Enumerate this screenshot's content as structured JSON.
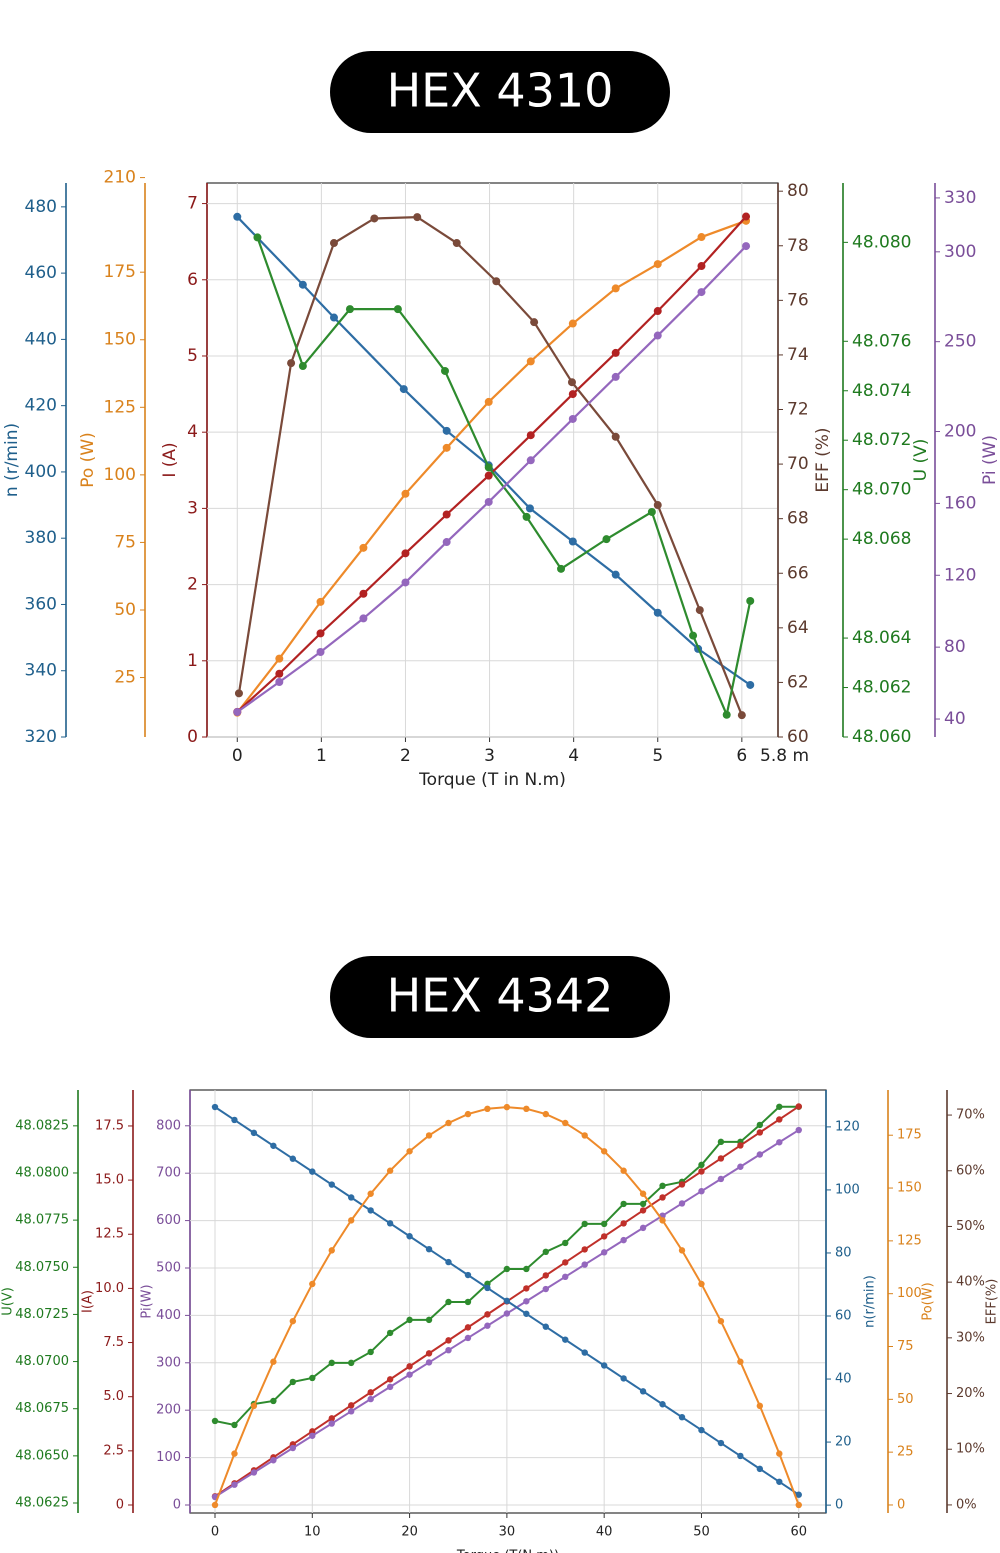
{
  "chart_data": [
    {
      "type": "line",
      "title": "HEX 4310",
      "xlabel": "Torque (T in N.m)",
      "x_annotation": "5.8 m",
      "xlim": [
        -0.36,
        6.43
      ],
      "xticks": [
        0,
        1,
        2,
        3,
        4,
        5,
        6
      ],
      "grid": true,
      "axes": [
        {
          "label": "n (r/min)",
          "color": "#1f5f8b",
          "series_color": "#2e6da4",
          "ylim": [
            320,
            487.2
          ],
          "yticks": [
            320,
            340,
            360,
            380,
            400,
            420,
            440,
            460,
            480
          ],
          "x": [
            0,
            0.78,
            1.15,
            1.98,
            2.49,
            2.99,
            3.48,
            3.99,
            4.5,
            5,
            5.48,
            6.1
          ],
          "values": [
            477,
            456.5,
            446.6,
            425,
            412.4,
            402,
            389,
            379,
            369,
            357.5,
            346.6,
            335.7
          ]
        },
        {
          "label": "Po (W)",
          "color": "#d9821c",
          "series_color": "#ee8a2a",
          "ylim": [
            3,
            208
          ],
          "yticks": [
            25,
            50,
            75,
            100,
            125,
            150,
            175,
            210
          ],
          "x": [
            0,
            0.5,
            0.99,
            1.5,
            2,
            2.49,
            2.99,
            3.49,
            3.99,
            4.5,
            5,
            5.52,
            6.05
          ],
          "values": [
            12,
            32,
            53,
            73,
            93,
            110,
            127,
            142,
            156,
            169,
            178,
            188,
            194
          ]
        },
        {
          "label": "I (A)",
          "color": "#8b1a1a",
          "series_color": "#b22222",
          "ylim": [
            0,
            7.27
          ],
          "yticks": [
            0,
            1,
            2,
            3,
            4,
            5,
            6,
            7
          ],
          "x": [
            0,
            0.5,
            0.99,
            1.5,
            2,
            2.49,
            2.99,
            3.49,
            3.99,
            4.5,
            5,
            5.52,
            6.05
          ],
          "values": [
            0.33,
            0.83,
            1.36,
            1.88,
            2.41,
            2.92,
            3.43,
            3.96,
            4.5,
            5.04,
            5.59,
            6.18,
            6.83
          ]
        },
        {
          "label": "EFF (%)",
          "color": "#5c3a2e",
          "series_color": "#7a4a3a",
          "ylim": [
            60,
            80.3
          ],
          "yticks": [
            60,
            62,
            64,
            66,
            68,
            70,
            72,
            74,
            76,
            78,
            80
          ],
          "x": [
            0.02,
            0.64,
            1.15,
            1.63,
            2.14,
            2.61,
            3.08,
            3.53,
            3.98,
            4.5,
            5,
            5.5,
            6
          ],
          "values": [
            61.6,
            73.7,
            78.1,
            79,
            79.05,
            78.1,
            76.7,
            75.2,
            73,
            71,
            68.5,
            64.65,
            60.8
          ]
        },
        {
          "label": "U (V)",
          "color": "#1f7a1f",
          "series_color": "#2e8b2e",
          "ylim": [
            48.06,
            48.0824
          ],
          "yticks": [
            {
              "value": 48.06,
              "label": "48.060"
            },
            48.062,
            48.064,
            48.068,
            {
              "value": 48.07,
              "label": "48.070"
            },
            48.072,
            48.074,
            48.076,
            {
              "value": 48.08,
              "label": "48.080"
            }
          ],
          "x": [
            0.24,
            0.78,
            1.34,
            1.91,
            2.47,
            2.99,
            3.44,
            3.85,
            4.39,
            4.93,
            5.42,
            5.82,
            6.1
          ],
          "values": [
            48.0802,
            48.075,
            48.0773,
            48.0773,
            48.0748,
            48.0709,
            48.0689,
            48.0668,
            48.068,
            48.0691,
            48.0641,
            48.0609,
            48.0655
          ]
        },
        {
          "label": "Pi (W)",
          "color": "#7a4e99",
          "series_color": "#9467bd",
          "ylim": [
            30,
            338.3
          ],
          "yticks": [
            40,
            80,
            120,
            160,
            200,
            250,
            300,
            330
          ],
          "x": [
            0,
            0.5,
            0.99,
            1.5,
            2,
            2.49,
            2.99,
            3.49,
            3.99,
            4.5,
            5,
            5.52,
            6.05
          ],
          "values": [
            43.9,
            60.6,
            77.3,
            96,
            116,
            138.5,
            160.8,
            184,
            207,
            230.4,
            253.4,
            277.6,
            303.2
          ]
        }
      ]
    },
    {
      "type": "line",
      "title": "HEX 4342",
      "xlabel": "Torque (T(N.m))",
      "xlim": [
        -2.57,
        62.8
      ],
      "xticks": [
        0,
        10,
        20,
        30,
        40,
        50,
        60
      ],
      "grid": true,
      "x": [
        0,
        2,
        4,
        6,
        8,
        10,
        12,
        14,
        16,
        18,
        20,
        22,
        24,
        26,
        28,
        30,
        32,
        34,
        36,
        38,
        40,
        42,
        44,
        46,
        48,
        50,
        52,
        54,
        56,
        58,
        60
      ],
      "axes": [
        {
          "label": "U(V)",
          "color": "#1f7a1f",
          "series_color": "#2e8b2e",
          "ylim": [
            48.06197,
            48.0844
          ],
          "yticks": [
            48.0625,
            {
              "value": 48.065,
              "label": "48.0650"
            },
            48.0675,
            {
              "value": 48.07,
              "label": "48.0700"
            },
            48.0725,
            {
              "value": 48.075,
              "label": "48.0750"
            },
            48.0775,
            {
              "value": 48.08,
              "label": "48.0800"
            },
            48.0825
          ],
          "values": [
            48.06685,
            48.06664,
            48.06775,
            48.06791,
            48.06892,
            48.06913,
            48.06993,
            48.06993,
            48.07051,
            48.07152,
            48.07221,
            48.07221,
            48.07316,
            48.07316,
            48.07412,
            48.07491,
            48.07491,
            48.07582,
            48.07629,
            48.0773,
            48.0773,
            48.07836,
            48.07836,
            48.07932,
            48.07953,
            48.08043,
            48.08165,
            48.08165,
            48.08255,
            48.08351,
            48.08351
          ]
        },
        {
          "label": "I(A)",
          "color": "#8b1a1a",
          "series_color": "#c0302a",
          "ylim": [
            -0.37,
            19.16
          ],
          "yticks": [
            0,
            2.5,
            {
              "value": 5,
              "label": "5.0"
            },
            7.5,
            {
              "value": 10,
              "label": "10.0"
            },
            12.5,
            {
              "value": 15,
              "label": "15.0"
            },
            17.5
          ],
          "values": [
            0.4,
            1.0,
            1.6,
            2.2,
            2.8,
            3.4,
            4.0,
            4.6,
            5.2,
            5.8,
            6.4,
            7.0,
            7.6,
            8.2,
            8.8,
            9.4,
            10.0,
            10.6,
            11.2,
            11.8,
            12.4,
            13.0,
            13.6,
            14.2,
            14.8,
            15.4,
            16.0,
            16.6,
            17.2,
            17.8,
            18.4
          ]
        },
        {
          "label": "Pi(W)",
          "color": "#7a4e99",
          "series_color": "#9467bd",
          "ylim": [
            -16.9,
            875.5
          ],
          "yticks": [
            0,
            100,
            200,
            300,
            400,
            500,
            600,
            700,
            800
          ],
          "values": [
            17,
            42.8,
            68.6,
            94.4,
            120.2,
            146,
            171.8,
            197.6,
            223.4,
            249.2,
            275,
            300.8,
            326.6,
            352.4,
            378.2,
            404,
            429.8,
            455.6,
            481.4,
            507.2,
            533,
            558.8,
            584.6,
            610.4,
            636.2,
            662,
            687.8,
            713.6,
            739.4,
            765.2,
            791
          ]
        },
        {
          "label": "n(r/min)",
          "color": "#1f5f8b",
          "series_color": "#2e6da4",
          "ylim": [
            -2.5,
            131.7
          ],
          "yticks": [
            0,
            20,
            40,
            60,
            80,
            100,
            120
          ],
          "values": [
            126.3,
            122.2,
            118.1,
            114.0,
            109.9,
            105.8,
            101.7,
            97.6,
            93.5,
            89.4,
            85.3,
            81.2,
            77.1,
            73.0,
            68.9,
            64.8,
            60.7,
            56.6,
            52.5,
            48.4,
            44.3,
            40.2,
            36.1,
            32.0,
            27.9,
            23.8,
            19.7,
            15.6,
            11.5,
            7.4,
            3.3
          ]
        },
        {
          "label": "Po(W)",
          "color": "#d9821c",
          "series_color": "#ee8a2a",
          "ylim": [
            -3.8,
            196.4
          ],
          "yticks": [
            0,
            25,
            50,
            75,
            100,
            125,
            150,
            175
          ],
          "values": [
            0,
            24.3,
            46.9,
            67.8,
            87.0,
            104.6,
            120.5,
            134.7,
            147.3,
            158.2,
            167.4,
            174.9,
            180.8,
            185.0,
            187.5,
            188.3,
            187.5,
            185.0,
            180.8,
            174.9,
            167.4,
            158.2,
            147.3,
            134.7,
            120.5,
            104.6,
            87.0,
            67.8,
            46.9,
            24.3,
            0
          ]
        },
        {
          "label": "EFF(%)",
          "color": "#5c3a2e",
          "ylim": [
            -1.45,
            74.5
          ],
          "yticks": [
            {
              "value": 0,
              "label": "0%"
            },
            {
              "value": 10,
              "label": "10%"
            },
            {
              "value": 20,
              "label": "20%"
            },
            {
              "value": 30,
              "label": "30%"
            },
            {
              "value": 40,
              "label": "40%"
            },
            {
              "value": 50,
              "label": "50%"
            },
            {
              "value": 60,
              "label": "60%"
            },
            {
              "value": 70,
              "label": "70%"
            }
          ]
        }
      ]
    }
  ]
}
